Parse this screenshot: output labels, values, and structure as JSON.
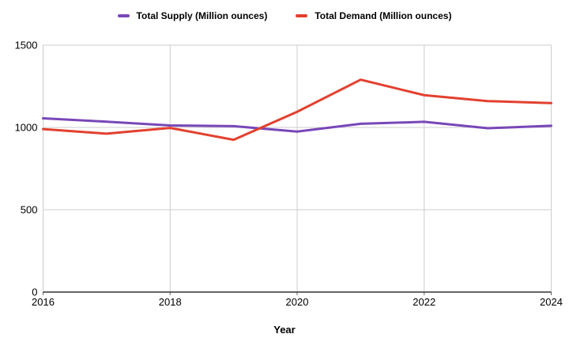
{
  "chart_data": {
    "type": "line",
    "title": "",
    "xlabel": "Year",
    "ylabel": "",
    "x": [
      2016,
      2017,
      2018,
      2019,
      2020,
      2021,
      2022,
      2023,
      2024
    ],
    "series": [
      {
        "name": "Total Supply (Million ounces)",
        "color": "#7847b8",
        "values": [
          1055,
          1035,
          1012,
          1008,
          975,
          1022,
          1034,
          995,
          1010
        ]
      },
      {
        "name": "Total Demand (Million ounces)",
        "color": "#e3402f",
        "values": [
          990,
          962,
          997,
          925,
          1095,
          1290,
          1196,
          1160,
          1148
        ]
      }
    ],
    "ylim": [
      0,
      1500
    ],
    "yticks": [
      0,
      500,
      1000,
      1500
    ],
    "xticks": [
      2016,
      2018,
      2020,
      2022,
      2024
    ],
    "grid": true,
    "legend_position": "top"
  },
  "style": {
    "grid_color": "#cccccc",
    "axis_color": "#333333",
    "tick_color": "#666666",
    "label_color": "#000000",
    "line_width": 3
  }
}
